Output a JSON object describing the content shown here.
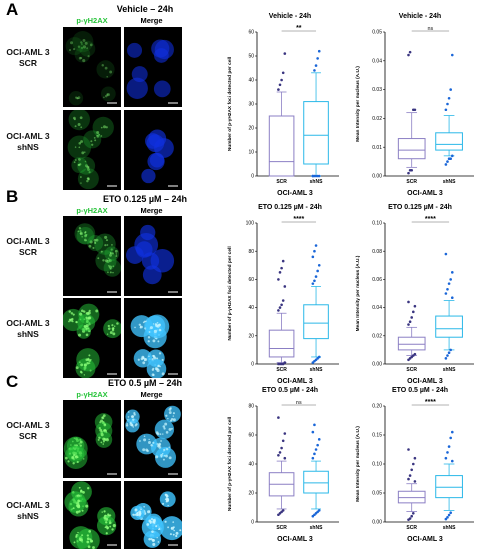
{
  "colors": {
    "green": "#27c43a",
    "blue": "#1030e0",
    "cyan": "#40c4ff",
    "scr": "#8b7fc4",
    "shns": "#2ab8e8",
    "scrDot": "#3a3580",
    "shnsDot": "#1a66d8"
  },
  "panels": [
    {
      "letter": "A",
      "title": "Vehicle – 24h",
      "cols": [
        "p-γH2AX",
        "Merge"
      ],
      "rows": [
        "OCI-AML 3 SCR",
        "OCI-AML 3 shNS"
      ],
      "micro": {
        "green": [
          0.08,
          0.3
        ],
        "merge": [
          0.08,
          0.3
        ]
      },
      "charts": [
        {
          "title": "Vehicle - 24h",
          "ylabel": "Number of p-γH2AX foci detected per cell",
          "xlabel": "OCI-AML 3",
          "ticks": [
            "0",
            "10",
            "20",
            "30",
            "40",
            "50",
            "60"
          ],
          "ymin": 0,
          "ymax": 60,
          "sig": "**",
          "categories": [
            "SCR",
            "shNS"
          ],
          "boxes": [
            {
              "min": 0,
              "q1": 0,
              "med": 6,
              "q3": 25,
              "max": 35
            },
            {
              "min": 0,
              "q1": 5,
              "med": 17,
              "q3": 31,
              "max": 43
            }
          ],
          "outliers": [
            [
              36,
              38,
              40,
              43,
              51
            ],
            [
              0,
              0,
              0,
              0,
              0,
              0,
              44,
              46,
              49,
              52
            ]
          ]
        },
        {
          "title": "Vehicle - 24h",
          "ylabel": "Mean Intensity per nucleus (A.U.)",
          "xlabel": "OCI-AML 3",
          "ticks": [
            "0.00",
            "0.01",
            "0.02",
            "0.03",
            "0.04",
            "0.05"
          ],
          "ymin": 0,
          "ymax": 0.05,
          "sig": "ns",
          "categories": [
            "SCR",
            "shNS"
          ],
          "boxes": [
            {
              "min": 0.003,
              "q1": 0.006,
              "med": 0.009,
              "q3": 0.013,
              "max": 0.022
            },
            {
              "min": 0.007,
              "q1": 0.009,
              "med": 0.011,
              "q3": 0.015,
              "max": 0.021
            }
          ],
          "outliers": [
            [
              0.001,
              0.002,
              0.002,
              0.023,
              0.023,
              0.042,
              0.043
            ],
            [
              0.004,
              0.005,
              0.006,
              0.006,
              0.007,
              0.023,
              0.025,
              0.027,
              0.03,
              0.042
            ]
          ]
        }
      ]
    },
    {
      "letter": "B",
      "title": "ETO 0.125 µM – 24h",
      "cols": [
        "p-γH2AX",
        "Merge"
      ],
      "rows": [
        "OCI-AML 3 SCR",
        "OCI-AML 3 shNS"
      ],
      "micro": {
        "green": [
          0.35,
          0.75
        ],
        "merge": [
          0.3,
          0.75
        ]
      },
      "charts": [
        {
          "title": "ETO 0.125 µM - 24h",
          "ylabel": "Number of p-γH2AX foci detected per cell",
          "xlabel": "OCI-AML 3",
          "ticks": [
            "0",
            "20",
            "40",
            "60",
            "80",
            "100"
          ],
          "ymin": 0,
          "ymax": 100,
          "sig": "****",
          "categories": [
            "SCR",
            "shNS"
          ],
          "boxes": [
            {
              "min": 1,
              "q1": 5,
              "med": 11,
              "q3": 24,
              "max": 36
            },
            {
              "min": 5,
              "q1": 18,
              "med": 29,
              "q3": 42,
              "max": 55
            }
          ],
          "outliers": [
            [
              0,
              0,
              0,
              0,
              1,
              38,
              40,
              42,
              45,
              55,
              60,
              65,
              68,
              73
            ],
            [
              1,
              2,
              3,
              4,
              5,
              57,
              59,
              62,
              66,
              70,
              76,
              80,
              84
            ]
          ]
        },
        {
          "title": "ETO 0.125 µM - 24h",
          "ylabel": "Mean Intensity per nucleus (A.U.)",
          "xlabel": "OCI-AML 3",
          "ticks": [
            "0.00",
            "0.02",
            "0.04",
            "0.06",
            "0.08",
            "0.10"
          ],
          "ymin": 0,
          "ymax": 0.1,
          "sig": "****",
          "categories": [
            "SCR",
            "shNS"
          ],
          "boxes": [
            {
              "min": 0.006,
              "q1": 0.01,
              "med": 0.014,
              "q3": 0.019,
              "max": 0.026
            },
            {
              "min": 0.01,
              "q1": 0.019,
              "med": 0.025,
              "q3": 0.034,
              "max": 0.045
            }
          ],
          "outliers": [
            [
              0.003,
              0.004,
              0.005,
              0.006,
              0.007,
              0.028,
              0.03,
              0.033,
              0.037,
              0.041,
              0.044
            ],
            [
              0.004,
              0.006,
              0.008,
              0.01,
              0.047,
              0.05,
              0.053,
              0.057,
              0.06,
              0.065,
              0.078
            ]
          ]
        }
      ]
    },
    {
      "letter": "C",
      "title": "ETO 0.5 µM – 24h",
      "cols": [
        "p-γH2AX",
        "Merge"
      ],
      "rows": [
        "OCI-AML 3 SCR",
        "OCI-AML 3 shNS"
      ],
      "micro": {
        "green": [
          0.75,
          0.9
        ],
        "merge": [
          0.7,
          0.9
        ]
      },
      "charts": [
        {
          "title": "ETO 0.5 µM - 24h",
          "ylabel": "Number of p-γH2AX foci detected per cell",
          "xlabel": "OCI-AML 3",
          "ticks": [
            "0",
            "20",
            "40",
            "60",
            "80"
          ],
          "ymin": 0,
          "ymax": 80,
          "sig": "ns",
          "categories": [
            "SCR",
            "shNS"
          ],
          "boxes": [
            {
              "min": 9,
              "q1": 18,
              "med": 26,
              "q3": 34,
              "max": 42
            },
            {
              "min": 9,
              "q1": 20,
              "med": 27,
              "q3": 35,
              "max": 42
            }
          ],
          "outliers": [
            [
              5,
              6,
              7,
              8,
              44,
              46,
              48,
              51,
              56,
              61,
              72
            ],
            [
              4,
              5,
              6,
              7,
              8,
              44,
              47,
              50,
              53,
              57,
              62,
              67
            ]
          ]
        },
        {
          "title": "ETO 0.5 µM - 24h",
          "ylabel": "Mean Intensity per nucleus (A.U.)",
          "xlabel": "OCI-AML 3",
          "ticks": [
            "0.00",
            "0.05",
            "0.10",
            "0.15",
            "0.20"
          ],
          "ymin": 0,
          "ymax": 0.2,
          "sig": "****",
          "categories": [
            "SCR",
            "shNS"
          ],
          "boxes": [
            {
              "min": 0.018,
              "q1": 0.033,
              "med": 0.042,
              "q3": 0.053,
              "max": 0.066
            },
            {
              "min": 0.02,
              "q1": 0.042,
              "med": 0.06,
              "q3": 0.08,
              "max": 0.1
            }
          ],
          "outliers": [
            [
              0.004,
              0.006,
              0.01,
              0.015,
              0.07,
              0.074,
              0.08,
              0.09,
              0.1,
              0.11,
              0.125
            ],
            [
              0.005,
              0.008,
              0.012,
              0.016,
              0.105,
              0.11,
              0.12,
              0.13,
              0.145,
              0.155
            ]
          ]
        }
      ]
    }
  ]
}
